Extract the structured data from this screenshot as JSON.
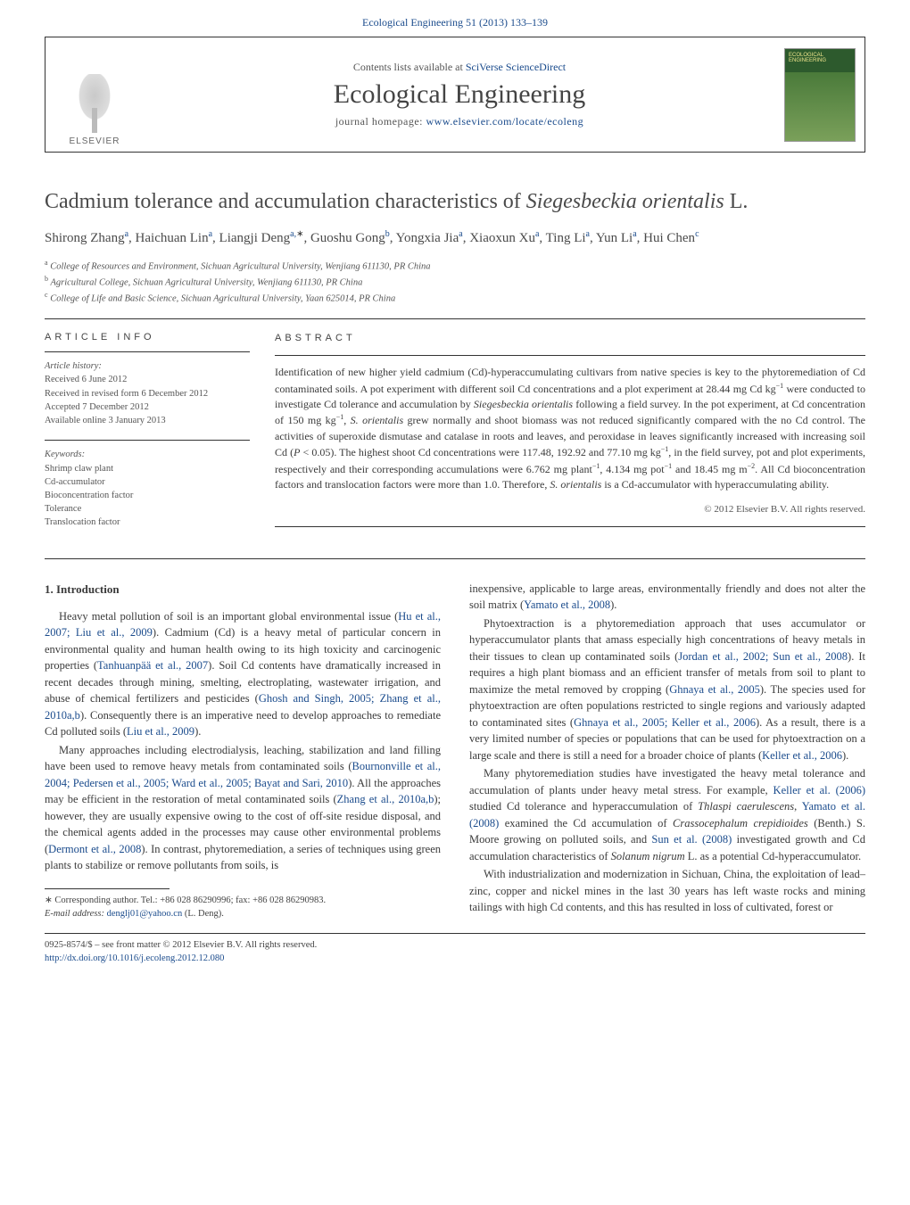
{
  "banner": {
    "text_before": "Ecological Engineering 51 (2013) 133–139",
    "contents_prefix": "Contents lists available at ",
    "contents_link": "SciVerse ScienceDirect",
    "journal_title": "Ecological Engineering",
    "homepage_prefix": "journal homepage: ",
    "homepage_link": "www.elsevier.com/locate/ecoleng",
    "publisher": "ELSEVIER"
  },
  "title_html": "Cadmium tolerance and accumulation characteristics of <em>Siegesbeckia orientalis</em> L.",
  "authors_html": "Shirong Zhang<sup>a</sup>, Haichuan Lin<sup>a</sup>, Liangji Deng<sup>a,<span class='star'>∗</span></sup>, Guoshu Gong<sup>b</sup>, Yongxia Jia<sup>a</sup>, Xiaoxun Xu<sup>a</sup>, Ting Li<sup>a</sup>, Yun Li<sup>a</sup>, Hui Chen<sup>c</sup>",
  "affiliations": [
    "a College of Resources and Environment, Sichuan Agricultural University, Wenjiang 611130, PR China",
    "b Agricultural College, Sichuan Agricultural University, Wenjiang 611130, PR China",
    "c College of Life and Basic Science, Sichuan Agricultural University, Yaan 625014, PR China"
  ],
  "article_info": {
    "label": "ARTICLE INFO",
    "history_label": "Article history:",
    "history": [
      "Received 6 June 2012",
      "Received in revised form 6 December 2012",
      "Accepted 7 December 2012",
      "Available online 3 January 2013"
    ],
    "keywords_label": "Keywords:",
    "keywords": [
      "Shrimp claw plant",
      "Cd-accumulator",
      "Bioconcentration factor",
      "Tolerance",
      "Translocation factor"
    ]
  },
  "abstract": {
    "label": "ABSTRACT",
    "text_html": "Identification of new higher yield cadmium (Cd)-hyperaccumulating cultivars from native species is key to the phytoremediation of Cd contaminated soils. A pot experiment with different soil Cd concentrations and a plot experiment at 28.44 mg Cd kg<sup>−1</sup> were conducted to investigate Cd tolerance and accumulation by <em>Siegesbeckia orientalis</em> following a field survey. In the pot experiment, at Cd concentration of 150 mg kg<sup>−1</sup>, <em>S. orientalis</em> grew normally and shoot biomass was not reduced significantly compared with the no Cd control. The activities of superoxide dismutase and catalase in roots and leaves, and peroxidase in leaves significantly increased with increasing soil Cd (<em>P</em> &lt; 0.05). The highest shoot Cd concentrations were 117.48, 192.92 and 77.10 mg kg<sup>−1</sup>, in the field survey, pot and plot experiments, respectively and their corresponding accumulations were 6.762 mg plant<sup>−1</sup>, 4.134 mg pot<sup>−1</sup> and 18.45 mg m<sup>−2</sup>. All Cd bioconcentration factors and translocation factors were more than 1.0. Therefore, <em>S. orientalis</em> is a Cd-accumulator with hyperaccumulating ability.",
    "copyright": "© 2012 Elsevier B.V. All rights reserved."
  },
  "intro_heading": "1. Introduction",
  "left_paras_html": [
    "Heavy metal pollution of soil is an important global environmental issue (<a>Hu et al., 2007; Liu et al., 2009</a>). Cadmium (Cd) is a heavy metal of particular concern in environmental quality and human health owing to its high toxicity and carcinogenic properties (<a>Tanhuanpää et al., 2007</a>). Soil Cd contents have dramatically increased in recent decades through mining, smelting, electroplating, wastewater irrigation, and abuse of chemical fertilizers and pesticides (<a>Ghosh and Singh, 2005; Zhang et al., 2010a,b</a>). Consequently there is an imperative need to develop approaches to remediate Cd polluted soils (<a>Liu et al., 2009</a>).",
    "Many approaches including electrodialysis, leaching, stabilization and land filling have been used to remove heavy metals from contaminated soils (<a>Bournonville et al., 2004; Pedersen et al., 2005; Ward et al., 2005; Bayat and Sari, 2010</a>). All the approaches may be efficient in the restoration of metal contaminated soils (<a>Zhang et al., 2010a,b</a>); however, they are usually expensive owing to the cost of off-site residue disposal, and the chemical agents added in the processes may cause other environmental problems (<a>Dermont et al., 2008</a>). In contrast, phytoremediation, a series of techniques using green plants to stabilize or remove pollutants from soils, is"
  ],
  "right_paras_html": [
    "inexpensive, applicable to large areas, environmentally friendly and does not alter the soil matrix (<a>Yamato et al., 2008</a>).",
    "Phytoextraction is a phytoremediation approach that uses accumulator or hyperaccumulator plants that amass especially high concentrations of heavy metals in their tissues to clean up contaminated soils (<a>Jordan et al., 2002; Sun et al., 2008</a>). It requires a high plant biomass and an efficient transfer of metals from soil to plant to maximize the metal removed by cropping (<a>Ghnaya et al., 2005</a>). The species used for phytoextraction are often populations restricted to single regions and variously adapted to contaminated sites (<a>Ghnaya et al., 2005; Keller et al., 2006</a>). As a result, there is a very limited number of species or populations that can be used for phytoextraction on a large scale and there is still a need for a broader choice of plants (<a>Keller et al., 2006</a>).",
    "Many phytoremediation studies have investigated the heavy metal tolerance and accumulation of plants under heavy metal stress. For example, <a>Keller et al. (2006)</a> studied Cd tolerance and hyperaccumulation of <em>Thlaspi caerulescens</em>, <a>Yamato et al. (2008)</a> examined the Cd accumulation of <em>Crassocephalum crepidioides</em> (Benth.) S. Moore growing on polluted soils, and <a>Sun et al. (2008)</a> investigated growth and Cd accumulation characteristics of <em>Solanum nigrum</em> L. as a potential Cd-hyperaccumulator.",
    "With industrialization and modernization in Sichuan, China, the exploitation of lead–zinc, copper and nickel mines in the last 30 years has left waste rocks and mining tailings with high Cd contents, and this has resulted in loss of cultivated, forest or"
  ],
  "footnote": {
    "corresponding": "∗ Corresponding author. Tel.: +86 028 86290996; fax: +86 028 86290983.",
    "email_label": "E-mail address:",
    "email": "denglj01@yahoo.cn",
    "email_suffix": " (L. Deng)."
  },
  "bottom": {
    "line1": "0925-8574/$ – see front matter © 2012 Elsevier B.V. All rights reserved.",
    "doi_link": "http://dx.doi.org/10.1016/j.ecoleng.2012.12.080"
  },
  "colors": {
    "link": "#1a4b8c",
    "text": "#3a3a3a",
    "muted": "#555555",
    "rule": "#333333",
    "cover_top": "#2d5a2d",
    "cover_bottom": "#7aa05a"
  }
}
